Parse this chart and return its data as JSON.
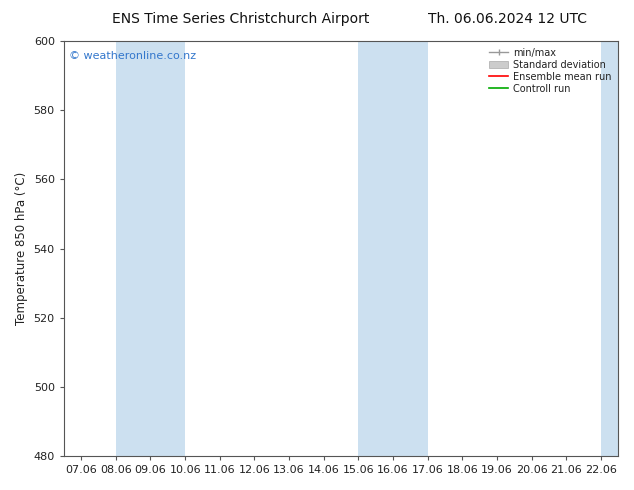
{
  "title_left": "ENS Time Series Christchurch Airport",
  "title_right": "Th. 06.06.2024 12 UTC",
  "ylabel": "Temperature 850 hPa (°C)",
  "watermark": "© weatheronline.co.nz",
  "ylim": [
    480,
    600
  ],
  "yticks": [
    480,
    500,
    520,
    540,
    560,
    580,
    600
  ],
  "xtick_labels": [
    "07.06",
    "08.06",
    "09.06",
    "10.06",
    "11.06",
    "12.06",
    "13.06",
    "14.06",
    "15.06",
    "16.06",
    "17.06",
    "18.06",
    "19.06",
    "20.06",
    "21.06",
    "22.06"
  ],
  "shaded_bands": [
    {
      "xmin": 1,
      "xmax": 3,
      "color": "#cce0f0"
    },
    {
      "xmin": 8,
      "xmax": 10,
      "color": "#cce0f0"
    },
    {
      "xmin": 15,
      "xmax": 16,
      "color": "#cce0f0"
    }
  ],
  "legend_entries": [
    {
      "label": "min/max",
      "color": "#999999",
      "lw": 1.0
    },
    {
      "label": "Standard deviation",
      "color": "#cccccc",
      "lw": 5
    },
    {
      "label": "Ensemble mean run",
      "color": "#ff0000",
      "lw": 1.2
    },
    {
      "label": "Controll run",
      "color": "#00aa00",
      "lw": 1.2
    }
  ],
  "background_color": "#ffffff",
  "plot_bg_color": "#ffffff",
  "title_fontsize": 10,
  "tick_fontsize": 8,
  "ylabel_fontsize": 8.5,
  "watermark_fontsize": 8,
  "watermark_color": "#3377cc"
}
